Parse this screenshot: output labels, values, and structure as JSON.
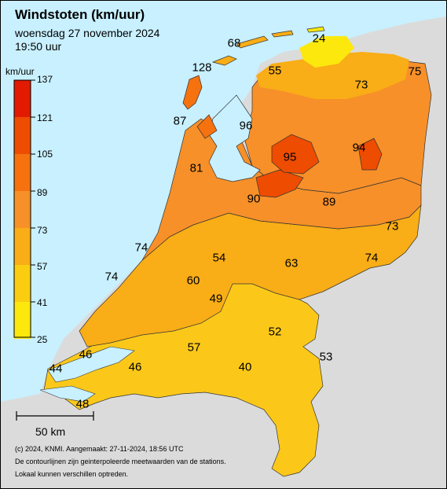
{
  "header": {
    "title": "Windstoten (km/uur)",
    "date": "woensdag 27 november 2024",
    "time": "19:50 uur"
  },
  "legend": {
    "unit": "km/uur",
    "ticks": [
      "137",
      "121",
      "105",
      "89",
      "73",
      "57",
      "41",
      "25"
    ],
    "colors": [
      "#e21b00",
      "#ee4c00",
      "#f5720f",
      "#f79029",
      "#f9ad16",
      "#fbcd11",
      "#fde80d",
      "#ffff00"
    ]
  },
  "stations": [
    "24",
    "68",
    "128",
    "55",
    "73",
    "75",
    "87",
    "96",
    "95",
    "94",
    "81",
    "90",
    "89",
    "73",
    "74",
    "54",
    "63",
    "74",
    "74",
    "60",
    "49",
    "52",
    "57",
    "46",
    "46",
    "53",
    "44",
    "40",
    "48"
  ],
  "scalebar": {
    "label": "50 km"
  },
  "footer": {
    "line1": "(c) 2024, KNMI. Aangemaakt: 27-11-2024, 18:56 UTC",
    "line2": "De contourlijnen zijn geinterpoleerde meetwaarden van de stations.",
    "line3": "Lokaal kunnen verschillen optreden."
  },
  "colors": {
    "sea": "#c8f0ff",
    "land_outside": "#dbdbdb"
  }
}
